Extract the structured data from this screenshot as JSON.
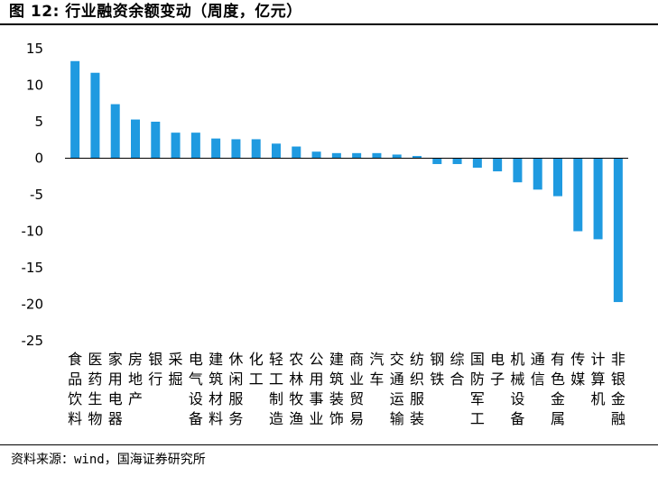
{
  "title": "图 12: 行业融资余额变动（周度，亿元）",
  "source": "资料来源：wind，国海证券研究所",
  "chart_data": {
    "type": "bar",
    "title": "行业融资余额变动（周度，亿元）",
    "xlabel": "",
    "ylabel": "",
    "ylim": [
      -25,
      15
    ],
    "yticks": [
      15,
      10,
      5,
      0,
      -5,
      -10,
      -15,
      -20,
      -25
    ],
    "grid": false,
    "bar_color": "#1f9ae0",
    "categories": [
      "食品饮料",
      "医药生物",
      "家用电器",
      "房地产",
      "银行",
      "采掘",
      "电气设备",
      "建筑材料",
      "休闲服务",
      "化工",
      "轻工制造",
      "农林牧渔",
      "公用事业",
      "建筑装饰",
      "商业贸易",
      "汽车",
      "交通运输",
      "纺织服装",
      "钢铁",
      "综合",
      "国防军工",
      "电子",
      "机械设备",
      "通信",
      "有色金属",
      "传媒",
      "计算机",
      "非银金融"
    ],
    "values": [
      13.3,
      11.7,
      7.4,
      5.3,
      5.0,
      3.5,
      3.5,
      2.7,
      2.6,
      2.6,
      2.0,
      1.6,
      0.9,
      0.7,
      0.7,
      0.7,
      0.5,
      0.3,
      -0.8,
      -0.8,
      -1.3,
      -1.8,
      -3.3,
      -4.3,
      -5.2,
      -10.0,
      -11.1,
      -19.7
    ]
  }
}
